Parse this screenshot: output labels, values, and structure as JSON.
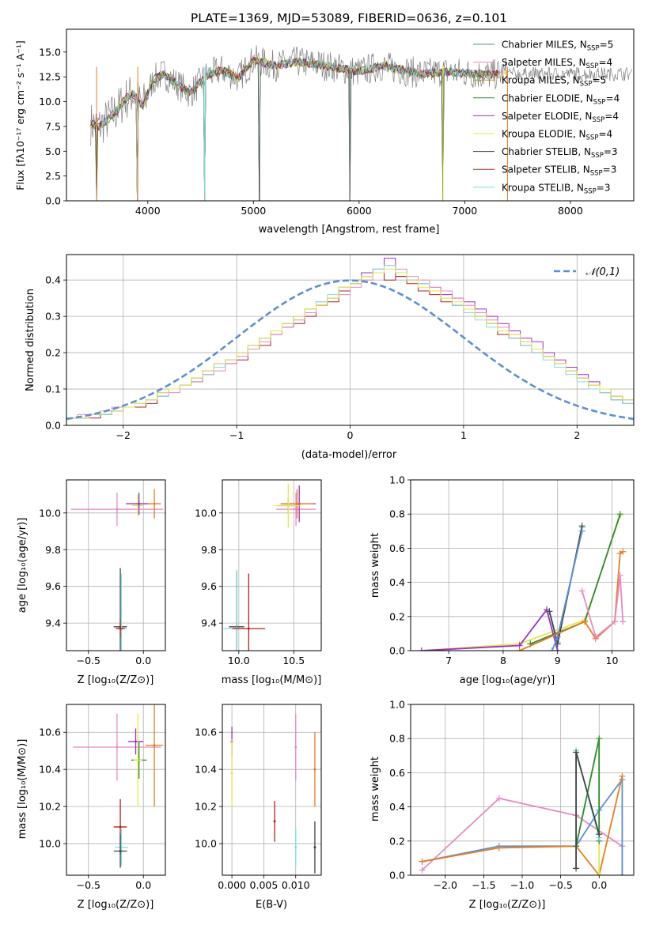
{
  "chart_data": [
    {
      "type": "line",
      "title": "PLATE=1369, MJD=53089, FIBERID=0636, z=0.101",
      "xlabel": "wavelength [Angstrom, rest frame]",
      "ylabel": "Flux [fλ10⁻¹⁷ erg cm⁻² s⁻¹ A⁻¹]",
      "xlim": [
        3230,
        8600
      ],
      "ylim": [
        0,
        17.3
      ],
      "xticks": [
        4000,
        5000,
        6000,
        7000,
        8000
      ],
      "yticks": [
        0.0,
        2.5,
        5.0,
        7.5,
        10.0,
        12.5,
        15.0
      ],
      "legend_position": "right",
      "series": [
        {
          "name": "Chabrier MILES, N_SSP=5",
          "color": "#4a9a7a"
        },
        {
          "name": "Salpeter MILES, N_SSP=4",
          "color": "#e68ac3"
        },
        {
          "name": "Kroupa MILES, N_SSP=5",
          "color": "#b89a2a"
        },
        {
          "name": "Chabrier ELODIE, N_SSP=4",
          "color": "#2e8b3a"
        },
        {
          "name": "Salpeter ELODIE, N_SSP=4",
          "color": "#9932cc"
        },
        {
          "name": "Kroupa ELODIE, N_SSP=4",
          "color": "#e6e64a"
        },
        {
          "name": "Chabrier STELIB, N_SSP=3",
          "color": "#444444"
        },
        {
          "name": "Salpeter STELIB, N_SSP=3",
          "color": "#b22222"
        },
        {
          "name": "Kroupa STELIB, N_SSP=3",
          "color": "#7fdfdf"
        }
      ],
      "data_trace_color": "#808080",
      "model_trace": {
        "x": [
          3460,
          3540,
          3620,
          3700,
          3780,
          3860,
          3950,
          4050,
          4150,
          4250,
          4400,
          4550,
          4700,
          4860,
          5000,
          5200,
          5400,
          5600,
          5800,
          6000,
          6200,
          6400,
          6600,
          6800,
          7000,
          7200,
          7400
        ],
        "y": [
          7.8,
          7.5,
          8.2,
          9.0,
          10.2,
          10.8,
          9.5,
          12.2,
          12.8,
          12.0,
          10.8,
          12.6,
          13.2,
          12.4,
          14.2,
          13.6,
          14.0,
          13.8,
          13.4,
          13.0,
          13.6,
          13.2,
          12.8,
          13.0,
          12.9,
          12.7,
          12.8
        ]
      },
      "absorption_drops": [
        3515,
        3905,
        4540,
        5060,
        5910,
        6795,
        7405
      ]
    },
    {
      "type": "histogram",
      "xlabel": "(data-model)/error",
      "ylabel": "Normed distribution",
      "xlim": [
        -2.5,
        2.5
      ],
      "ylim": [
        0,
        0.47
      ],
      "xticks": [
        -2,
        -1,
        0,
        1,
        2
      ],
      "yticks": [
        0.0,
        0.1,
        0.2,
        0.3,
        0.4
      ],
      "legend": [
        {
          "name": "𝒩(0,1)",
          "style": "dashed",
          "color": "#5b8fd6"
        }
      ],
      "bin_edges_start": -2.5,
      "bin_width": 0.1,
      "series": [
        {
          "color": "#9932cc",
          "values": [
            0.02,
            0.02,
            0.03,
            0.04,
            0.04,
            0.05,
            0.06,
            0.07,
            0.09,
            0.1,
            0.11,
            0.13,
            0.15,
            0.17,
            0.18,
            0.2,
            0.22,
            0.24,
            0.26,
            0.28,
            0.3,
            0.32,
            0.33,
            0.35,
            0.38,
            0.4,
            0.42,
            0.43,
            0.46,
            0.41,
            0.4,
            0.39,
            0.38,
            0.36,
            0.35,
            0.34,
            0.32,
            0.3,
            0.28,
            0.26,
            0.24,
            0.23,
            0.2,
            0.18,
            0.16,
            0.14,
            0.12,
            0.1,
            0.08,
            0.07,
            0.06
          ]
        },
        {
          "color": "#b22222",
          "values": [
            0.02,
            0.02,
            0.02,
            0.03,
            0.04,
            0.05,
            0.05,
            0.06,
            0.08,
            0.1,
            0.11,
            0.12,
            0.14,
            0.16,
            0.17,
            0.18,
            0.21,
            0.22,
            0.25,
            0.27,
            0.28,
            0.3,
            0.33,
            0.34,
            0.37,
            0.39,
            0.41,
            0.42,
            0.4,
            0.41,
            0.39,
            0.37,
            0.36,
            0.34,
            0.33,
            0.31,
            0.3,
            0.28,
            0.25,
            0.24,
            0.22,
            0.2,
            0.19,
            0.17,
            0.15,
            0.13,
            0.11,
            0.09,
            0.07,
            0.06,
            0.05
          ]
        },
        {
          "color": "#e68ac3",
          "values": [
            0.02,
            0.03,
            0.03,
            0.04,
            0.05,
            0.05,
            0.06,
            0.07,
            0.08,
            0.09,
            0.11,
            0.12,
            0.14,
            0.15,
            0.17,
            0.19,
            0.21,
            0.23,
            0.25,
            0.27,
            0.29,
            0.31,
            0.34,
            0.35,
            0.36,
            0.38,
            0.4,
            0.42,
            0.44,
            0.43,
            0.41,
            0.4,
            0.38,
            0.37,
            0.35,
            0.33,
            0.31,
            0.29,
            0.27,
            0.25,
            0.23,
            0.21,
            0.19,
            0.17,
            0.15,
            0.13,
            0.11,
            0.09,
            0.08,
            0.06,
            0.05
          ]
        },
        {
          "color": "#7fdfdf",
          "values": [
            0.02,
            0.02,
            0.03,
            0.03,
            0.04,
            0.05,
            0.06,
            0.07,
            0.08,
            0.1,
            0.11,
            0.13,
            0.14,
            0.16,
            0.18,
            0.2,
            0.22,
            0.24,
            0.26,
            0.28,
            0.3,
            0.32,
            0.34,
            0.36,
            0.38,
            0.4,
            0.41,
            0.43,
            0.44,
            0.42,
            0.4,
            0.39,
            0.37,
            0.35,
            0.33,
            0.31,
            0.29,
            0.27,
            0.26,
            0.24,
            0.22,
            0.2,
            0.18,
            0.16,
            0.14,
            0.12,
            0.1,
            0.09,
            0.07,
            0.06,
            0.05
          ]
        },
        {
          "color": "#e6e64a",
          "values": [
            0.02,
            0.02,
            0.03,
            0.04,
            0.04,
            0.05,
            0.06,
            0.07,
            0.09,
            0.1,
            0.11,
            0.13,
            0.15,
            0.17,
            0.18,
            0.2,
            0.22,
            0.24,
            0.26,
            0.28,
            0.3,
            0.32,
            0.33,
            0.35,
            0.38,
            0.39,
            0.41,
            0.42,
            0.43,
            0.42,
            0.4,
            0.38,
            0.37,
            0.35,
            0.34,
            0.32,
            0.3,
            0.28,
            0.26,
            0.25,
            0.23,
            0.21,
            0.19,
            0.17,
            0.15,
            0.13,
            0.11,
            0.1,
            0.08,
            0.07,
            0.05
          ]
        }
      ],
      "curve": "normal(0,1)"
    },
    {
      "type": "scatter",
      "xlabel": "Z [log₁₀(Z/Z⊙)]",
      "ylabel": "age  [log₁₀(age/yr)]",
      "xlim": [
        -0.7,
        0.2
      ],
      "ylim": [
        9.25,
        10.18
      ],
      "xticks": [
        -0.5,
        0.0
      ],
      "yticks": [
        9.4,
        9.6,
        9.8,
        10.0
      ],
      "points": [
        {
          "color": "#e68ac3",
          "x": -0.24,
          "y": 10.02,
          "xerr": 0.42,
          "yerr": 0.09
        },
        {
          "color": "#2e8b3a",
          "x": -0.04,
          "y": 10.05,
          "xerr": 0.08,
          "yerr": 0.02
        },
        {
          "color": "#e6e64a",
          "x": -0.05,
          "y": 10.04,
          "xerr": 0.05,
          "yerr": 0.06
        },
        {
          "color": "#9932cc",
          "x": -0.04,
          "y": 10.05,
          "xerr": 0.12,
          "yerr": 0.06
        },
        {
          "color": "#e67e22",
          "x": 0.1,
          "y": 10.05,
          "xerr": 0.06,
          "yerr": 0.08
        },
        {
          "color": "#444444",
          "x": -0.21,
          "y": 9.38,
          "xerr": 0.06,
          "yerr": 0.32
        },
        {
          "color": "#7fdfdf",
          "x": -0.2,
          "y": 9.37,
          "xerr": 0.05,
          "yerr": 0.3
        },
        {
          "color": "#b22222",
          "x": -0.21,
          "y": 9.37,
          "xerr": 0.04,
          "yerr": 0.05
        }
      ]
    },
    {
      "type": "scatter",
      "xlabel": "mass [log₁₀(M/M⊙)]",
      "ylabel": "",
      "xlim": [
        9.85,
        10.75
      ],
      "ylim": [
        9.25,
        10.18
      ],
      "xticks": [
        10.0,
        10.5
      ],
      "yticks": [
        9.4,
        9.6,
        9.8,
        10.0
      ],
      "points": [
        {
          "color": "#e68ac3",
          "x": 10.52,
          "y": 10.02,
          "xerr": 0.18,
          "yerr": 0.09
        },
        {
          "color": "#2e8b3a",
          "x": 10.45,
          "y": 10.04,
          "xerr": 0.1,
          "yerr": 0.04
        },
        {
          "color": "#9932cc",
          "x": 10.55,
          "y": 10.05,
          "xerr": 0.15,
          "yerr": 0.1
        },
        {
          "color": "#e67e22",
          "x": 10.53,
          "y": 10.05,
          "xerr": 0.15,
          "yerr": 0.08
        },
        {
          "color": "#e6e64a",
          "x": 10.45,
          "y": 10.04,
          "xerr": 0.12,
          "yerr": 0.12
        },
        {
          "color": "#444444",
          "x": 9.98,
          "y": 9.38,
          "xerr": 0.07,
          "yerr": 0.3
        },
        {
          "color": "#7fdfdf",
          "x": 9.98,
          "y": 9.37,
          "xerr": 0.12,
          "yerr": 0.32
        },
        {
          "color": "#b22222",
          "x": 10.09,
          "y": 9.37,
          "xerr": 0.15,
          "yerr": 0.3
        }
      ]
    },
    {
      "type": "line",
      "xlabel": "age  [log₁₀(age/yr)]",
      "ylabel": "mass weight",
      "xlim": [
        6.3,
        10.4
      ],
      "ylim": [
        0,
        1.0
      ],
      "xticks": [
        7,
        8,
        9,
        10
      ],
      "yticks": [
        0.0,
        0.2,
        0.4,
        0.6,
        0.8,
        1.0
      ],
      "series": [
        {
          "color": "#e6e64a",
          "x": [
            6.5,
            8.3,
            9.5,
            10.15
          ],
          "y": [
            0.0,
            0.04,
            0.18,
            0.79
          ]
        },
        {
          "color": "#2e8b3a",
          "x": [
            8.5,
            9.5,
            10.15
          ],
          "y": [
            0.04,
            0.17,
            0.8
          ]
        },
        {
          "color": "#9932cc",
          "x": [
            6.5,
            8.3,
            8.8,
            9.0
          ],
          "y": [
            0.0,
            0.03,
            0.24,
            0.0
          ]
        },
        {
          "color": "#7fdfdf",
          "x": [
            8.85,
            9.0,
            9.45
          ],
          "y": [
            0.23,
            0.05,
            0.72
          ]
        },
        {
          "color": "#444444",
          "x": [
            8.85,
            9.0,
            9.45
          ],
          "y": [
            0.23,
            0.04,
            0.73
          ]
        },
        {
          "color": "#5b8fd6",
          "x": [
            8.9,
            9.0,
            9.45
          ],
          "y": [
            0.0,
            0.08,
            0.7
          ]
        },
        {
          "color": "#e67e22",
          "x": [
            8.3,
            9.5,
            9.7,
            10.05,
            10.15,
            10.2
          ],
          "y": [
            0.0,
            0.17,
            0.07,
            0.17,
            0.57,
            0.58
          ]
        },
        {
          "color": "#e68ac3",
          "x": [
            9.45,
            9.7,
            10.05,
            10.15,
            10.2
          ],
          "y": [
            0.35,
            0.08,
            0.17,
            0.44,
            0.17
          ]
        }
      ]
    },
    {
      "type": "scatter",
      "xlabel": "Z [log₁₀(Z/Z⊙)]",
      "ylabel": "mass [log₁₀(M/M⊙)]",
      "xlim": [
        -0.7,
        0.2
      ],
      "ylim": [
        9.83,
        10.75
      ],
      "xticks": [
        -0.5,
        0.0
      ],
      "yticks": [
        10.0,
        10.2,
        10.4,
        10.6
      ],
      "points": [
        {
          "color": "#e68ac3",
          "x": -0.24,
          "y": 10.52,
          "xerr": 0.4,
          "yerr": 0.18
        },
        {
          "color": "#9932cc",
          "x": -0.07,
          "y": 10.55,
          "xerr": 0.07,
          "yerr": 0.07
        },
        {
          "color": "#e67e22",
          "x": 0.1,
          "y": 10.53,
          "xerr": 0.08,
          "yerr": 0.33
        },
        {
          "color": "#2e8b3a",
          "x": -0.04,
          "y": 10.45,
          "xerr": 0.07,
          "yerr": 0.1
        },
        {
          "color": "#e6e64a",
          "x": -0.05,
          "y": 10.45,
          "xerr": 0.04,
          "yerr": 0.25
        },
        {
          "color": "#b22222",
          "x": -0.21,
          "y": 10.09,
          "xerr": 0.06,
          "yerr": 0.15
        },
        {
          "color": "#7fdfdf",
          "x": -0.2,
          "y": 9.98,
          "xerr": 0.06,
          "yerr": 0.1
        },
        {
          "color": "#444444",
          "x": -0.21,
          "y": 9.96,
          "xerr": 0.06,
          "yerr": 0.09
        }
      ]
    },
    {
      "type": "scatter",
      "xlabel": "E(B-V)",
      "ylabel": "",
      "xlim": [
        -0.0015,
        0.014
      ],
      "ylim": [
        9.83,
        10.75
      ],
      "xticks": [
        0.0,
        0.005,
        0.01
      ],
      "xtick_labels": [
        "0.000",
        "0.005",
        "0.010"
      ],
      "yticks": [
        10.0,
        10.2,
        10.4,
        10.6
      ],
      "points": [
        {
          "color": "#9932cc",
          "x": 0.0,
          "y": 10.55,
          "yerr": 0.08
        },
        {
          "color": "#e6e64a",
          "x": 0.0,
          "y": 10.38,
          "yerr": 0.18
        },
        {
          "color": "#b22222",
          "x": 0.0067,
          "y": 10.12,
          "yerr": 0.11
        },
        {
          "color": "#e68ac3",
          "x": 0.01,
          "y": 10.52,
          "yerr": 0.18
        },
        {
          "color": "#7fdfdf",
          "x": 0.01,
          "y": 9.98,
          "yerr": 0.1
        },
        {
          "color": "#e67e22",
          "x": 0.013,
          "y": 10.4,
          "yerr": 0.2
        },
        {
          "color": "#444444",
          "x": 0.013,
          "y": 9.98,
          "yerr": 0.14
        }
      ]
    },
    {
      "type": "line",
      "xlabel": "Z [log₁₀(Z/Z⊙)]",
      "ylabel": "mass weight",
      "xlim": [
        -2.45,
        0.45
      ],
      "ylim": [
        0,
        1.0
      ],
      "xticks": [
        -2.0,
        -1.5,
        -1.0,
        -0.5,
        0.0
      ],
      "yticks": [
        0.0,
        0.2,
        0.4,
        0.6,
        0.8,
        1.0
      ],
      "series": [
        {
          "color": "#e68ac3",
          "x": [
            -2.3,
            -1.3,
            -0.3,
            0.3
          ],
          "y": [
            0.03,
            0.45,
            0.35,
            0.17
          ]
        },
        {
          "color": "#5b8fd6",
          "x": [
            -2.3,
            -1.3,
            -0.3,
            0.0,
            0.3,
            0.3
          ],
          "y": [
            0.08,
            0.17,
            0.17,
            0.38,
            0.56,
            0.0
          ]
        },
        {
          "color": "#e67e22",
          "x": [
            -2.3,
            -1.3,
            -0.3,
            0.0,
            0.3
          ],
          "y": [
            0.08,
            0.16,
            0.17,
            0.0,
            0.58
          ]
        },
        {
          "color": "#e6e64a",
          "x": [
            -0.3,
            0.0,
            0.0
          ],
          "y": [
            0.17,
            0.8,
            0.0
          ]
        },
        {
          "color": "#2e8b3a",
          "x": [
            -0.3,
            0.0,
            0.0
          ],
          "y": [
            0.17,
            0.8,
            0.2
          ]
        },
        {
          "color": "#7fdfdf",
          "x": [
            -0.3,
            -0.3,
            0.0
          ],
          "y": [
            0.04,
            0.73,
            0.22
          ]
        },
        {
          "color": "#444444",
          "x": [
            -0.3,
            -0.3,
            0.0
          ],
          "y": [
            0.04,
            0.72,
            0.24
          ]
        }
      ]
    }
  ]
}
